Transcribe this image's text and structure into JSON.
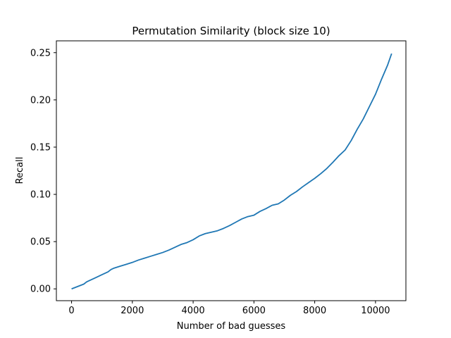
{
  "chart_data": {
    "type": "line",
    "title": "Permutation Similarity (block size 10)",
    "xlabel": "Number of bad guesses",
    "ylabel": "Recall",
    "xlim": [
      -500,
      11000
    ],
    "ylim": [
      -0.0125,
      0.2625
    ],
    "xticks": [
      0,
      2000,
      4000,
      6000,
      8000,
      10000
    ],
    "xtick_labels": [
      "0",
      "2000",
      "4000",
      "6000",
      "8000",
      "10000"
    ],
    "yticks": [
      0.0,
      0.05,
      0.1,
      0.15,
      0.2,
      0.25
    ],
    "ytick_labels": [
      "0.00",
      "0.05",
      "0.10",
      "0.15",
      "0.20",
      "0.25"
    ],
    "grid": false,
    "series": [
      {
        "color": "#1f77b4",
        "x": [
          0,
          200,
          400,
          500,
          600,
          800,
          1000,
          1200,
          1300,
          1400,
          1600,
          1800,
          2000,
          2200,
          2400,
          2600,
          2800,
          3000,
          3200,
          3400,
          3600,
          3800,
          4000,
          4200,
          4400,
          4600,
          4800,
          5000,
          5200,
          5400,
          5600,
          5800,
          6000,
          6200,
          6400,
          6600,
          6800,
          7000,
          7200,
          7400,
          7600,
          7800,
          8000,
          8200,
          8400,
          8600,
          8800,
          9000,
          9200,
          9400,
          9600,
          9800,
          10000,
          10200,
          10400,
          10530
        ],
        "y": [
          0.0,
          0.0025,
          0.005,
          0.0075,
          0.009,
          0.012,
          0.015,
          0.018,
          0.0205,
          0.022,
          0.024,
          0.026,
          0.028,
          0.0305,
          0.0325,
          0.0345,
          0.0365,
          0.0385,
          0.041,
          0.044,
          0.047,
          0.049,
          0.052,
          0.056,
          0.0585,
          0.06,
          0.0615,
          0.064,
          0.067,
          0.0705,
          0.074,
          0.0765,
          0.078,
          0.082,
          0.085,
          0.0885,
          0.09,
          0.094,
          0.099,
          0.103,
          0.108,
          0.1125,
          0.117,
          0.122,
          0.1275,
          0.134,
          0.141,
          0.147,
          0.157,
          0.169,
          0.18,
          0.193,
          0.206,
          0.222,
          0.237,
          0.249
        ]
      }
    ]
  }
}
